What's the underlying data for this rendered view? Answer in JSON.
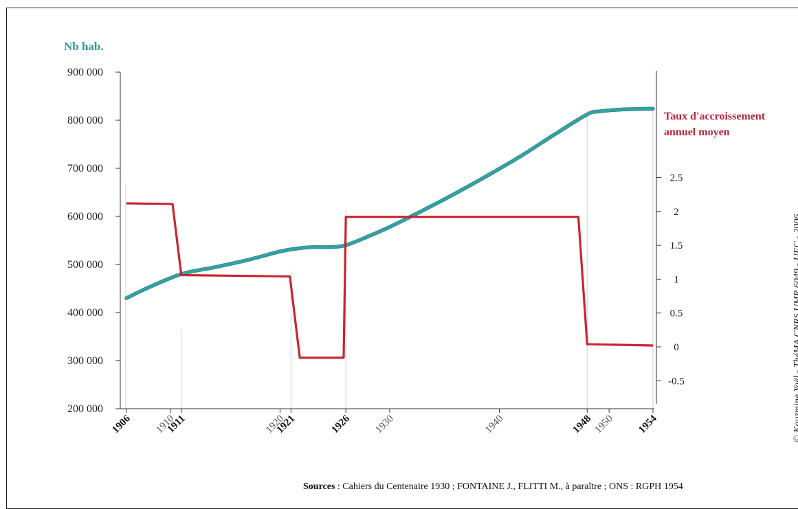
{
  "chart_data": {
    "type": "line",
    "left_axis_label": "Nb hab.",
    "right_axis_label_line1": "Taux d'accroissement",
    "right_axis_label_line2": "annuel moyen",
    "left_ticks": [
      "900 000",
      "800 000",
      "700 000",
      "600 000",
      "500 000",
      "400 000",
      "300 000",
      "200 000"
    ],
    "left_ylim": [
      200000,
      900000
    ],
    "right_ticks": [
      "2.5",
      "2",
      "1.5",
      "1",
      "0.5",
      "0",
      "-0.5"
    ],
    "right_ylim": [
      -0.5,
      2.5
    ],
    "x_range": [
      1906,
      1954
    ],
    "x_ticks": [
      {
        "label": "1906",
        "year": 1906,
        "bold": true
      },
      {
        "label": "1910",
        "year": 1910,
        "bold": false
      },
      {
        "label": "1911",
        "year": 1911,
        "bold": true
      },
      {
        "label": "1920",
        "year": 1920,
        "bold": false
      },
      {
        "label": "1921",
        "year": 1921,
        "bold": true
      },
      {
        "label": "1926",
        "year": 1926,
        "bold": true
      },
      {
        "label": "1930",
        "year": 1930,
        "bold": false
      },
      {
        "label": "1940",
        "year": 1940,
        "bold": false
      },
      {
        "label": "1948",
        "year": 1948,
        "bold": true
      },
      {
        "label": "1950",
        "year": 1950,
        "bold": false
      },
      {
        "label": "1954",
        "year": 1954,
        "bold": true
      }
    ],
    "series": [
      {
        "color": "#2fa3ad",
        "axis": "left",
        "x": [
          1906,
          1908,
          1911,
          1914,
          1917,
          1920,
          1921.5,
          1923,
          1924.5,
          1926,
          1928,
          1930,
          1933,
          1936,
          1939,
          1942,
          1945,
          1948,
          1949,
          1951,
          1954
        ],
        "y": [
          430000,
          452000,
          480000,
          494000,
          509000,
          527000,
          533000,
          536000,
          536000,
          540000,
          558000,
          578000,
          612000,
          648000,
          686000,
          726000,
          770000,
          812000,
          818000,
          822000,
          824000
        ]
      },
      {
        "color": "#c8252f",
        "axis": "right",
        "x": [
          1906,
          1910.2,
          1911,
          1920.9,
          1921.8,
          1925.8,
          1926,
          1947.2,
          1948,
          1954
        ],
        "y": [
          2.12,
          2.11,
          1.06,
          1.04,
          -0.16,
          -0.16,
          1.92,
          1.92,
          0.04,
          0.02
        ]
      }
    ]
  },
  "sources_label": "Sources",
  "sources_text": " : Cahiers du Centenaire 1930 ; FONTAINE J., FLITTI M., à paraître ; ONS : RGPH 1954",
  "credit": "© Kouzmine Yaël - ThéMA CNRS UMR 6049 - UFC - 2006"
}
